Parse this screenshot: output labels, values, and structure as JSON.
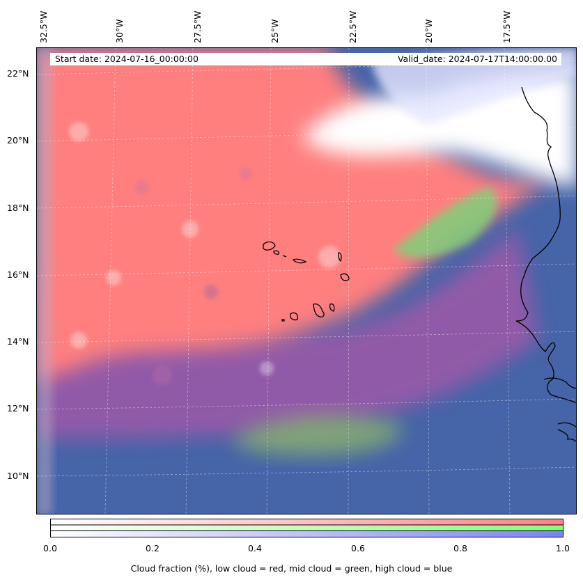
{
  "map": {
    "start_date": "Start date: 2024-07-16_00:00:00",
    "valid_date": "Valid_date: 2024-07-17T14:00:00.00",
    "lon_labels": [
      "32.5°W",
      "30°W",
      "27.5°W",
      "25°W",
      "22.5°W",
      "20°W",
      "17.5°W"
    ],
    "lat_labels": [
      "22°N",
      "20°N",
      "18°N",
      "16°N",
      "14°N",
      "12°N",
      "10°N"
    ],
    "colors": {
      "low_cloud": "#ff7f7f",
      "mid_cloud": "#7fff7f",
      "high_cloud": "#7f7fff",
      "background": "#4664a8",
      "coastline": "#000000"
    }
  },
  "colorbar": {
    "ticks": [
      "0.0",
      "0.2",
      "0.4",
      "0.6",
      "0.8",
      "1.0"
    ],
    "caption": "Cloud fraction (%), low cloud = red, mid cloud = green, high cloud = blue"
  }
}
